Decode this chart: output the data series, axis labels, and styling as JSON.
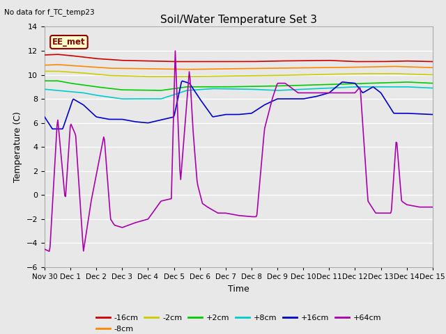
{
  "title": "Soil/Water Temperature Set 3",
  "no_data_label": "No data for f_TC_temp23",
  "station_label": "EE_met",
  "xlabel": "Time",
  "ylabel": "Temperature (C)",
  "ylim": [
    -6,
    14
  ],
  "yticks": [
    -6,
    -4,
    -2,
    0,
    2,
    4,
    6,
    8,
    10,
    12,
    14
  ],
  "xtick_labels": [
    "Nov 30",
    "Dec 1",
    "Dec 2",
    "Dec 3",
    "Dec 4",
    "Dec 5",
    "Dec 6",
    "Dec 7",
    "Dec 8",
    "Dec 9",
    "Dec 10",
    "Dec 11",
    "Dec 12",
    "Dec 13",
    "Dec 14",
    "Dec 15"
  ],
  "background_color": "#e8e8e8",
  "grid_color": "#ffffff",
  "series_colors": {
    "-16cm": "#cc0000",
    "-8cm": "#ff8800",
    "-2cm": "#cccc00",
    "+2cm": "#00cc00",
    "+8cm": "#00cccc",
    "+16cm": "#0000cc",
    "+64cm": "#aa00aa"
  }
}
